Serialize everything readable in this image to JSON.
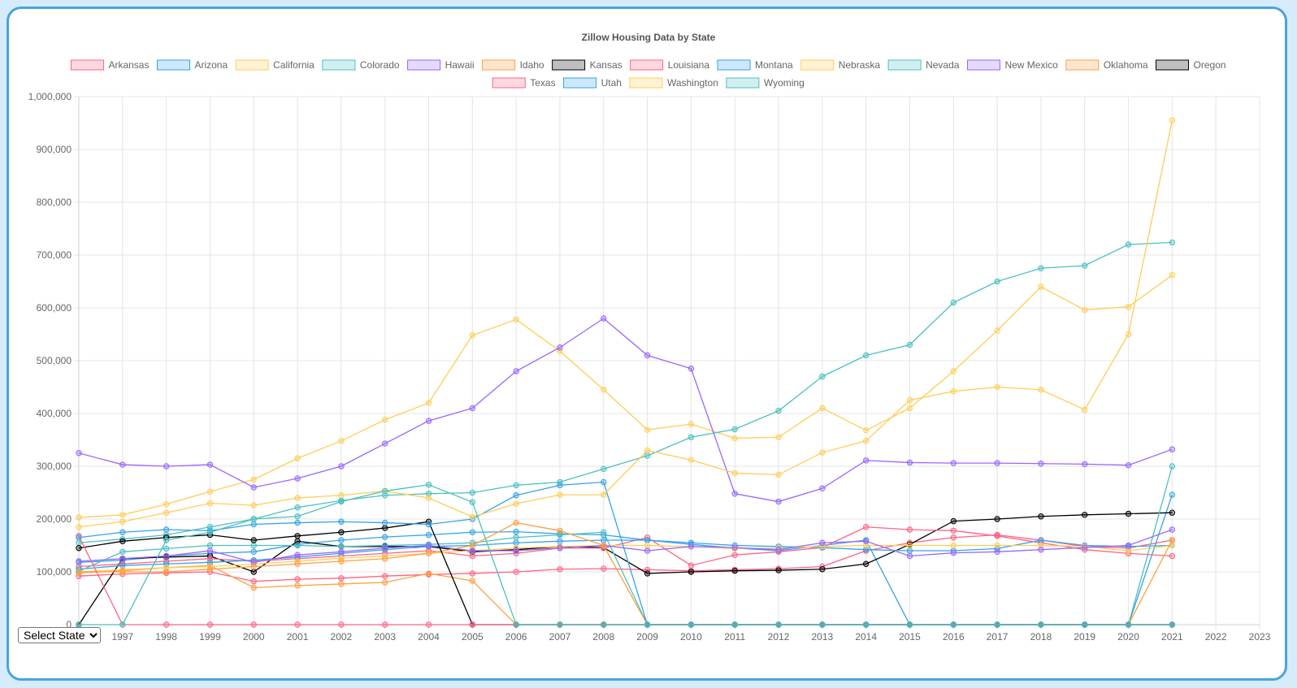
{
  "select": {
    "selected_label": "Select State",
    "options": [
      "Select State"
    ]
  },
  "chart_data": {
    "type": "line",
    "title": "Zillow Housing Data by State",
    "xlabel": "",
    "ylabel": "",
    "x": [
      1996,
      1997,
      1998,
      1999,
      2000,
      2001,
      2002,
      2003,
      2004,
      2005,
      2006,
      2007,
      2008,
      2009,
      2010,
      2011,
      2012,
      2013,
      2014,
      2015,
      2016,
      2017,
      2018,
      2019,
      2020,
      2021
    ],
    "x_ticks": [
      1996,
      1997,
      1998,
      1999,
      2000,
      2001,
      2002,
      2003,
      2004,
      2005,
      2006,
      2007,
      2008,
      2009,
      2010,
      2011,
      2012,
      2013,
      2014,
      2015,
      2016,
      2017,
      2018,
      2019,
      2020,
      2021,
      2022,
      2023
    ],
    "xlim": [
      1996,
      2023
    ],
    "ylim": [
      0,
      1000000
    ],
    "y_ticks": [
      0,
      100000,
      200000,
      300000,
      400000,
      500000,
      600000,
      700000,
      800000,
      900000,
      1000000
    ],
    "y_tick_labels": [
      "0",
      "100,000",
      "200,000",
      "300,000",
      "400,000",
      "500,000",
      "600,000",
      "700,000",
      "800,000",
      "900,000",
      "1,000,000"
    ],
    "grid": true,
    "legend_position": "top",
    "series": [
      {
        "name": "Arkansas",
        "color": "#ff6384",
        "values": [
          92000,
          96000,
          98000,
          100000,
          82000,
          86000,
          88000,
          92000,
          95000,
          97000,
          100000,
          105000,
          106000,
          104000,
          102000,
          104000,
          106000,
          110000,
          140000,
          155000,
          165000,
          170000,
          160000,
          148000,
          145000,
          160000
        ]
      },
      {
        "name": "Arizona",
        "color": "#36a2eb",
        "values": [
          118000,
          122000,
          130000,
          135000,
          138000,
          152000,
          160000,
          166000,
          170000,
          175000,
          176000,
          172000,
          170000,
          160000,
          152000,
          145000,
          140000,
          150000,
          160000,
          0,
          0,
          0,
          0,
          0,
          0,
          246000
        ]
      },
      {
        "name": "California",
        "color": "#ffcd56",
        "values": [
          203000,
          208000,
          228000,
          252000,
          275000,
          315000,
          348000,
          388000,
          420000,
          548000,
          578000,
          518000,
          445000,
          369000,
          380000,
          353000,
          355000,
          410000,
          368000,
          410000,
          480000,
          557000,
          640000,
          596000,
          602000,
          662000
        ]
      },
      {
        "name": "Colorado",
        "color": "#4bc0c0",
        "values": [
          155000,
          162000,
          170000,
          185000,
          200000,
          222000,
          235000,
          245000,
          248000,
          250000,
          264000,
          270000,
          295000,
          320000,
          355000,
          370000,
          405000,
          470000,
          510000,
          530000,
          610000,
          650000,
          675000,
          680000,
          720000,
          724000
        ]
      },
      {
        "name": "Hawaii",
        "color": "#9966ff",
        "values": [
          325000,
          303000,
          300000,
          303000,
          260000,
          277000,
          300000,
          343000,
          386000,
          410000,
          480000,
          525000,
          580000,
          510000,
          485000,
          248000,
          233000,
          258000,
          311000,
          307000,
          306000,
          306000,
          305000,
          304000,
          302000,
          332000
        ]
      },
      {
        "name": "Idaho",
        "color": "#ff9f40",
        "values": [
          98000,
          102000,
          108000,
          112000,
          70000,
          74000,
          77000,
          80000,
          97000,
          83000,
          0,
          0,
          0,
          0,
          0,
          0,
          0,
          0,
          0,
          0,
          0,
          0,
          0,
          0,
          0,
          0
        ]
      },
      {
        "name": "Kansas",
        "color": "#000000",
        "values": [
          0,
          125000,
          128000,
          130000,
          100000,
          158000,
          148000,
          148000,
          148000,
          138000,
          142000,
          148000,
          146000,
          97000,
          100000,
          102000,
          103000,
          105000,
          115000,
          152000,
          196000,
          200000,
          205000,
          208000,
          210000,
          212000
        ]
      },
      {
        "name": "Louisiana",
        "color": "#ff6384",
        "values": [
          110000,
          115000,
          120000,
          125000,
          120000,
          125000,
          130000,
          135000,
          140000,
          130000,
          135000,
          145000,
          145000,
          165000,
          112000,
          132000,
          138000,
          146000,
          185000,
          180000,
          178000,
          168000,
          155000,
          142000,
          135000,
          130000
        ]
      },
      {
        "name": "Montana",
        "color": "#36a2eb",
        "values": [
          105000,
          112000,
          115000,
          118000,
          122000,
          128000,
          135000,
          142000,
          148000,
          150000,
          155000,
          158000,
          160000,
          160000,
          155000,
          150000,
          148000,
          146000,
          142000,
          140000,
          140000,
          144000,
          160000,
          150000,
          148000,
          150000
        ]
      },
      {
        "name": "Nebraska",
        "color": "#ffcd56",
        "values": [
          100000,
          104000,
          108000,
          110000,
          115000,
          120000,
          126000,
          130000,
          135000,
          140000,
          145000,
          148000,
          150000,
          150000,
          148000,
          144000,
          145000,
          148000,
          150000,
          150000,
          150000,
          150000,
          150000,
          148000,
          140000,
          150000
        ]
      },
      {
        "name": "Nevada",
        "color": "#4bc0c0",
        "values": [
          101000,
          138000,
          144000,
          150000,
          150000,
          150000,
          148000,
          150000,
          152000,
          155000,
          165000,
          170000,
          175000,
          0,
          0,
          0,
          0,
          0,
          0,
          0,
          0,
          0,
          0,
          0,
          0,
          300000
        ]
      },
      {
        "name": "New Mexico",
        "color": "#9966ff",
        "values": [
          120000,
          125000,
          130000,
          140000,
          118000,
          132000,
          138000,
          145000,
          150000,
          140000,
          140000,
          145000,
          150000,
          140000,
          148000,
          146000,
          142000,
          155000,
          158000,
          130000,
          136000,
          138000,
          142000,
          146000,
          150000,
          180000
        ]
      },
      {
        "name": "Oklahoma",
        "color": "#ff9f40",
        "values": [
          100000,
          100000,
          100000,
          105000,
          110000,
          115000,
          120000,
          125000,
          135000,
          150000,
          193000,
          178000,
          150000,
          0,
          0,
          0,
          0,
          0,
          0,
          0,
          0,
          0,
          0,
          0,
          0,
          160000
        ]
      },
      {
        "name": "Oregon",
        "color": "#000000",
        "values": [
          145000,
          158000,
          165000,
          170000,
          160000,
          168000,
          175000,
          183000,
          195000,
          0,
          0,
          0,
          0,
          0,
          0,
          0,
          0,
          0,
          0,
          0,
          0,
          0,
          0,
          0,
          0,
          0
        ]
      },
      {
        "name": "Texas",
        "color": "#ff6384",
        "values": [
          168000,
          0,
          0,
          0,
          0,
          0,
          0,
          0,
          0,
          0,
          0,
          0,
          0,
          0,
          0,
          0,
          0,
          0,
          0,
          0,
          0,
          0,
          0,
          0,
          0,
          0
        ]
      },
      {
        "name": "Utah",
        "color": "#36a2eb",
        "values": [
          165000,
          175000,
          180000,
          178000,
          190000,
          193000,
          195000,
          193000,
          190000,
          200000,
          245000,
          264000,
          270000,
          0,
          0,
          0,
          0,
          0,
          0,
          0,
          0,
          0,
          0,
          0,
          0,
          0
        ]
      },
      {
        "name": "Washington",
        "color": "#ffcd56",
        "values": [
          185000,
          195000,
          212000,
          230000,
          226000,
          240000,
          245000,
          253000,
          240000,
          204000,
          229000,
          246000,
          246000,
          330000,
          312000,
          287000,
          284000,
          326000,
          348000,
          425000,
          442000,
          450000,
          445000,
          407000,
          550000,
          955000
        ]
      },
      {
        "name": "Wyoming",
        "color": "#4bc0c0",
        "values": [
          0,
          0,
          160000,
          175000,
          200000,
          205000,
          233000,
          253000,
          265000,
          232000,
          0,
          0,
          0,
          0,
          0,
          0,
          0,
          0,
          0,
          0,
          0,
          0,
          0,
          0,
          0,
          0
        ]
      }
    ]
  }
}
